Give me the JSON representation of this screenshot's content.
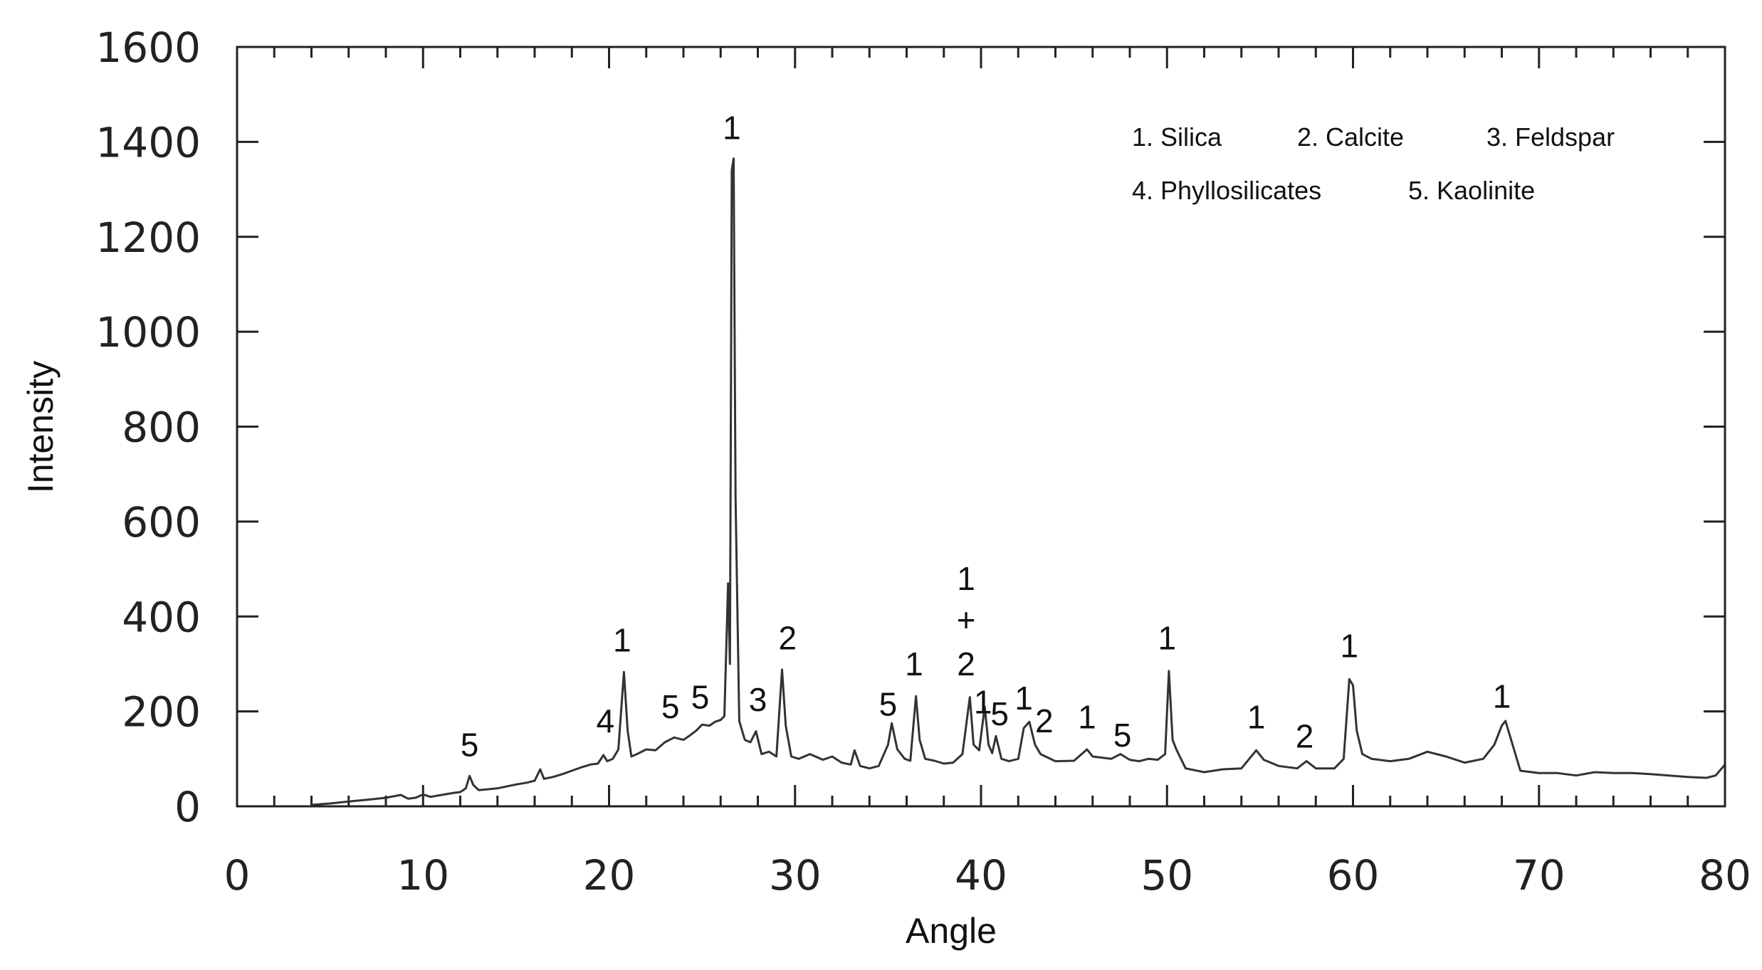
{
  "chart_data": {
    "type": "line",
    "title": "",
    "xlabel": "Angle",
    "ylabel": "Intensity",
    "xlim": [
      0,
      80
    ],
    "ylim": [
      0,
      1600
    ],
    "xticks": [
      "0",
      "10",
      "20",
      "30",
      "40",
      "50",
      "60",
      "70",
      "80"
    ],
    "yticks": [
      "0",
      "200",
      "400",
      "600",
      "800",
      "1000",
      "1200",
      "1400",
      "1600"
    ],
    "grid": false,
    "line_color": "#333333",
    "legend": {
      "placement": "top-right",
      "entries": [
        "1.  Silica",
        "2.  Calcite",
        "3.  Feldspar",
        "4.  Phyllosilicates",
        "5. Kaolinite"
      ]
    },
    "series": [
      {
        "points": [
          [
            4,
            3
          ],
          [
            5,
            6
          ],
          [
            6,
            10
          ],
          [
            7,
            14
          ],
          [
            8,
            18
          ],
          [
            8.8,
            24
          ],
          [
            9.2,
            16
          ],
          [
            9.6,
            18
          ],
          [
            10,
            25
          ],
          [
            10.4,
            20
          ],
          [
            11,
            24
          ],
          [
            11.6,
            28
          ],
          [
            12,
            30
          ],
          [
            12.3,
            38
          ],
          [
            12.5,
            64
          ],
          [
            12.7,
            45
          ],
          [
            13,
            34
          ],
          [
            14,
            38
          ],
          [
            15,
            46
          ],
          [
            15.6,
            50
          ],
          [
            16,
            54
          ],
          [
            16.3,
            78
          ],
          [
            16.5,
            58
          ],
          [
            17,
            62
          ],
          [
            17.5,
            68
          ],
          [
            18,
            75
          ],
          [
            18.5,
            82
          ],
          [
            19,
            88
          ],
          [
            19.4,
            90
          ],
          [
            19.7,
            108
          ],
          [
            19.9,
            95
          ],
          [
            20.2,
            100
          ],
          [
            20.5,
            120
          ],
          [
            20.8,
            283
          ],
          [
            21,
            160
          ],
          [
            21.2,
            105
          ],
          [
            21.5,
            110
          ],
          [
            22,
            120
          ],
          [
            22.5,
            118
          ],
          [
            23,
            135
          ],
          [
            23.5,
            145
          ],
          [
            24,
            140
          ],
          [
            24.3,
            148
          ],
          [
            24.7,
            160
          ],
          [
            25,
            172
          ],
          [
            25.4,
            170
          ],
          [
            25.7,
            178
          ],
          [
            26,
            182
          ],
          [
            26.2,
            190
          ],
          [
            26.4,
            470
          ],
          [
            26.5,
            300
          ],
          [
            26.6,
            1340
          ],
          [
            26.7,
            1365
          ],
          [
            26.8,
            650
          ],
          [
            27,
            180
          ],
          [
            27.3,
            140
          ],
          [
            27.6,
            135
          ],
          [
            27.9,
            158
          ],
          [
            28.2,
            110
          ],
          [
            28.6,
            115
          ],
          [
            29,
            105
          ],
          [
            29.3,
            288
          ],
          [
            29.5,
            170
          ],
          [
            29.8,
            105
          ],
          [
            30.2,
            100
          ],
          [
            30.8,
            110
          ],
          [
            31.5,
            98
          ],
          [
            32,
            105
          ],
          [
            32.5,
            92
          ],
          [
            33,
            88
          ],
          [
            33.2,
            118
          ],
          [
            33.5,
            85
          ],
          [
            34,
            80
          ],
          [
            34.5,
            85
          ],
          [
            35,
            130
          ],
          [
            35.2,
            175
          ],
          [
            35.5,
            120
          ],
          [
            35.9,
            100
          ],
          [
            36.2,
            96
          ],
          [
            36.5,
            232
          ],
          [
            36.7,
            140
          ],
          [
            37,
            100
          ],
          [
            37.5,
            96
          ],
          [
            38,
            90
          ],
          [
            38.5,
            92
          ],
          [
            39,
            110
          ],
          [
            39.4,
            230
          ],
          [
            39.6,
            130
          ],
          [
            39.9,
            118
          ],
          [
            40.2,
            210
          ],
          [
            40.4,
            130
          ],
          [
            40.6,
            112
          ],
          [
            40.8,
            148
          ],
          [
            41.1,
            100
          ],
          [
            41.5,
            95
          ],
          [
            42,
            100
          ],
          [
            42.3,
            165
          ],
          [
            42.6,
            178
          ],
          [
            42.9,
            130
          ],
          [
            43.2,
            110
          ],
          [
            44,
            95
          ],
          [
            45,
            96
          ],
          [
            45.7,
            120
          ],
          [
            46,
            105
          ],
          [
            47,
            100
          ],
          [
            47.5,
            110
          ],
          [
            48,
            98
          ],
          [
            48.5,
            95
          ],
          [
            49,
            100
          ],
          [
            49.5,
            98
          ],
          [
            49.9,
            110
          ],
          [
            50.1,
            285
          ],
          [
            50.3,
            140
          ],
          [
            50.5,
            120
          ],
          [
            51,
            80
          ],
          [
            52,
            72
          ],
          [
            53,
            78
          ],
          [
            54,
            80
          ],
          [
            54.8,
            118
          ],
          [
            55.2,
            98
          ],
          [
            56,
            85
          ],
          [
            57,
            80
          ],
          [
            57.5,
            95
          ],
          [
            58,
            80
          ],
          [
            59,
            80
          ],
          [
            59.5,
            100
          ],
          [
            59.8,
            268
          ],
          [
            60,
            255
          ],
          [
            60.2,
            160
          ],
          [
            60.5,
            110
          ],
          [
            61,
            100
          ],
          [
            62,
            95
          ],
          [
            63,
            100
          ],
          [
            64,
            115
          ],
          [
            65,
            105
          ],
          [
            66,
            92
          ],
          [
            67,
            100
          ],
          [
            67.6,
            130
          ],
          [
            68,
            170
          ],
          [
            68.2,
            180
          ],
          [
            68.5,
            140
          ],
          [
            69,
            75
          ],
          [
            70,
            70
          ],
          [
            71,
            70
          ],
          [
            72,
            65
          ],
          [
            73,
            72
          ],
          [
            74,
            70
          ],
          [
            75,
            70
          ],
          [
            76,
            68
          ],
          [
            77,
            65
          ],
          [
            78,
            62
          ],
          [
            79,
            60
          ],
          [
            79.5,
            65
          ],
          [
            80,
            88
          ]
        ]
      }
    ],
    "annotations": [
      {
        "text": "5",
        "x": 12.5,
        "y": 130
      },
      {
        "text": "4",
        "x": 19.8,
        "y": 180
      },
      {
        "text": "1",
        "x": 20.7,
        "y": 350
      },
      {
        "text": "5",
        "x": 23.3,
        "y": 210
      },
      {
        "text": "5",
        "x": 24.9,
        "y": 230
      },
      {
        "text": "1",
        "x": 26.6,
        "y": 1430
      },
      {
        "text": "3",
        "x": 28.0,
        "y": 225
      },
      {
        "text": "2",
        "x": 29.6,
        "y": 355
      },
      {
        "text": "5",
        "x": 35.0,
        "y": 215
      },
      {
        "text": "1",
        "x": 36.4,
        "y": 300
      },
      {
        "text": "1",
        "x": 39.2,
        "y": 480
      },
      {
        "text": "+",
        "x": 39.2,
        "y": 393
      },
      {
        "text": "2",
        "x": 39.2,
        "y": 300
      },
      {
        "text": "1",
        "x": 40.1,
        "y": 220
      },
      {
        "text": "5",
        "x": 41.0,
        "y": 195
      },
      {
        "text": "1",
        "x": 42.3,
        "y": 228
      },
      {
        "text": "2",
        "x": 43.4,
        "y": 180
      },
      {
        "text": "1",
        "x": 45.7,
        "y": 188
      },
      {
        "text": "5",
        "x": 47.6,
        "y": 150
      },
      {
        "text": "1",
        "x": 50.0,
        "y": 355
      },
      {
        "text": "1",
        "x": 54.8,
        "y": 188
      },
      {
        "text": "2",
        "x": 57.4,
        "y": 148
      },
      {
        "text": "1",
        "x": 59.8,
        "y": 338
      },
      {
        "text": "1",
        "x": 68.0,
        "y": 232
      }
    ]
  }
}
